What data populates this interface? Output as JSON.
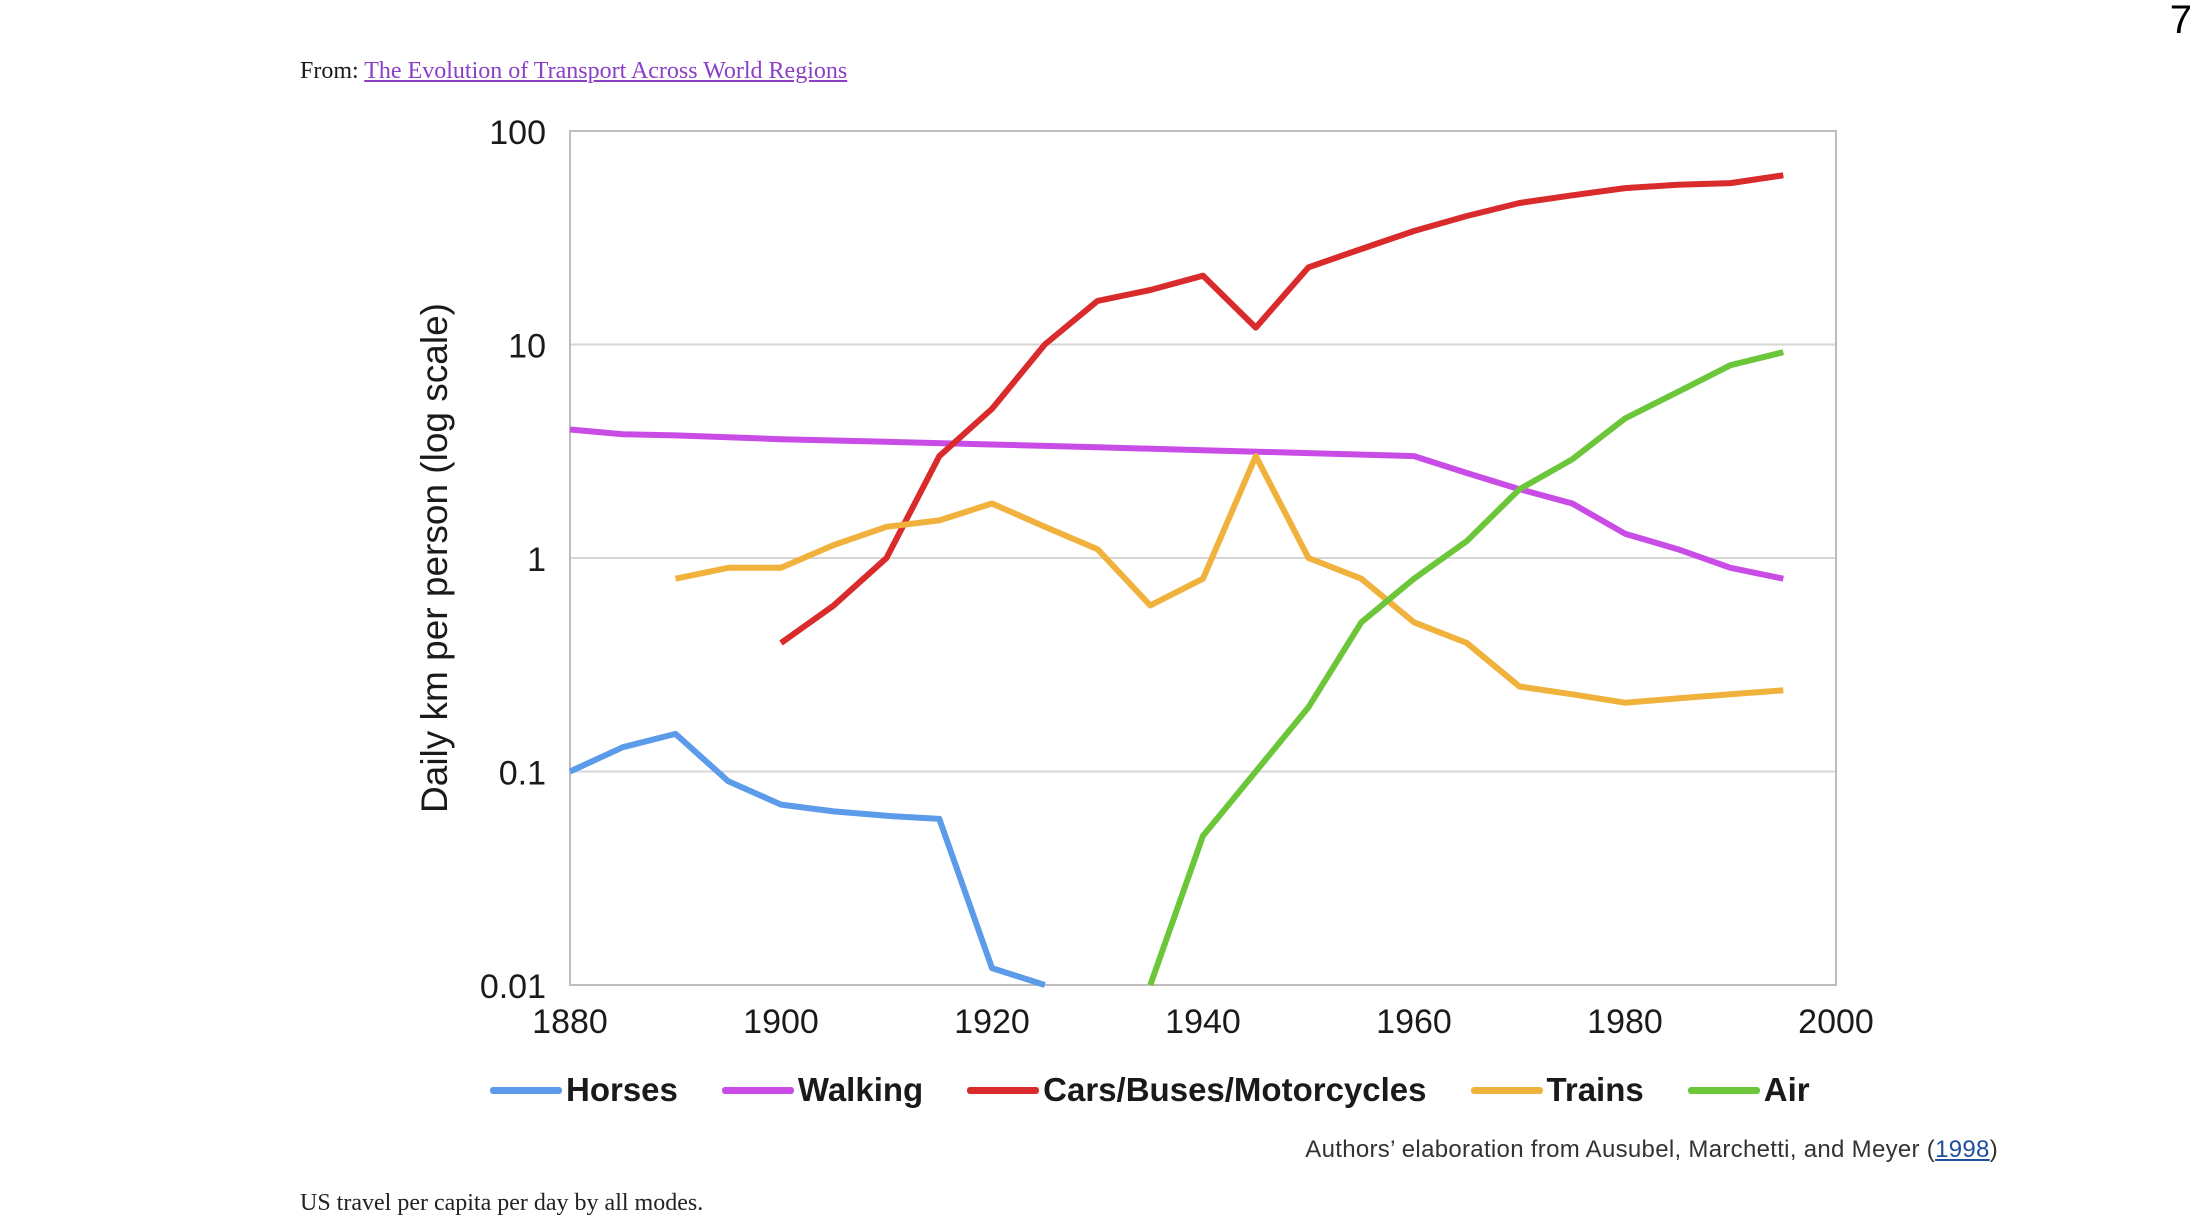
{
  "page_number": "7",
  "source": {
    "prefix": "From:",
    "link_text": "The Evolution of Transport Across World Regions"
  },
  "attribution": {
    "text": "Authors’ elaboration from Ausubel, Marchetti, and Meyer (",
    "year_link": "1998",
    "suffix": ")"
  },
  "caption": "US travel per capita per day by all modes.",
  "chart_data": {
    "type": "line",
    "title": "",
    "xlabel": "",
    "ylabel": "Daily km per person (log scale)",
    "yscale": "log",
    "xlim": [
      1880,
      2000
    ],
    "ylim": [
      0.01,
      100
    ],
    "x_ticks": [
      "1880",
      "1900",
      "1920",
      "1940",
      "1960",
      "1980",
      "2000"
    ],
    "y_ticks": [
      "0.01",
      "0.1",
      "1",
      "10",
      "100"
    ],
    "grid": "horizontal",
    "legend_position": "bottom",
    "series": [
      {
        "name": "Horses",
        "color": "#5b9bea",
        "x": [
          1880,
          1885,
          1890,
          1895,
          1900,
          1905,
          1910,
          1915,
          1920,
          1925
        ],
        "y": [
          0.1,
          0.13,
          0.15,
          0.09,
          0.07,
          0.065,
          0.062,
          0.06,
          0.012,
          0.01
        ]
      },
      {
        "name": "Walking",
        "color": "#c94ce6",
        "x": [
          1880,
          1885,
          1890,
          1900,
          1910,
          1920,
          1930,
          1940,
          1950,
          1960,
          1965,
          1970,
          1975,
          1980,
          1985,
          1990,
          1995
        ],
        "y": [
          4,
          3.8,
          3.75,
          3.6,
          3.5,
          3.4,
          3.3,
          3.2,
          3.1,
          3.0,
          2.5,
          2.1,
          1.8,
          1.3,
          1.1,
          0.9,
          0.8
        ]
      },
      {
        "name": "Cars/Buses/Motorcycles",
        "color": "#d92b2b",
        "x": [
          1900,
          1905,
          1910,
          1915,
          1920,
          1925,
          1930,
          1935,
          1940,
          1945,
          1950,
          1955,
          1960,
          1965,
          1970,
          1975,
          1980,
          1985,
          1990,
          1995
        ],
        "y": [
          0.4,
          0.6,
          1.0,
          3.0,
          5.0,
          10,
          16,
          18,
          21,
          12,
          23,
          28,
          34,
          40,
          46,
          50,
          54,
          56,
          57,
          62
        ]
      },
      {
        "name": "Trains",
        "color": "#f0b23c",
        "x": [
          1890,
          1895,
          1900,
          1905,
          1910,
          1915,
          1920,
          1925,
          1930,
          1935,
          1940,
          1945,
          1950,
          1955,
          1960,
          1965,
          1970,
          1975,
          1980,
          1985,
          1990,
          1995
        ],
        "y": [
          0.8,
          0.9,
          0.9,
          1.15,
          1.4,
          1.5,
          1.8,
          1.4,
          1.1,
          0.6,
          0.8,
          3.0,
          1.0,
          0.8,
          0.5,
          0.4,
          0.25,
          0.23,
          0.21,
          0.22,
          0.23,
          0.24
        ]
      },
      {
        "name": "Air",
        "color": "#6cc63a",
        "x": [
          1935,
          1940,
          1945,
          1950,
          1955,
          1960,
          1965,
          1970,
          1975,
          1980,
          1985,
          1990,
          1995
        ],
        "y": [
          0.01,
          0.05,
          0.1,
          0.2,
          0.5,
          0.8,
          1.2,
          2.1,
          2.9,
          4.5,
          6.0,
          8.0,
          9.2
        ]
      }
    ]
  }
}
